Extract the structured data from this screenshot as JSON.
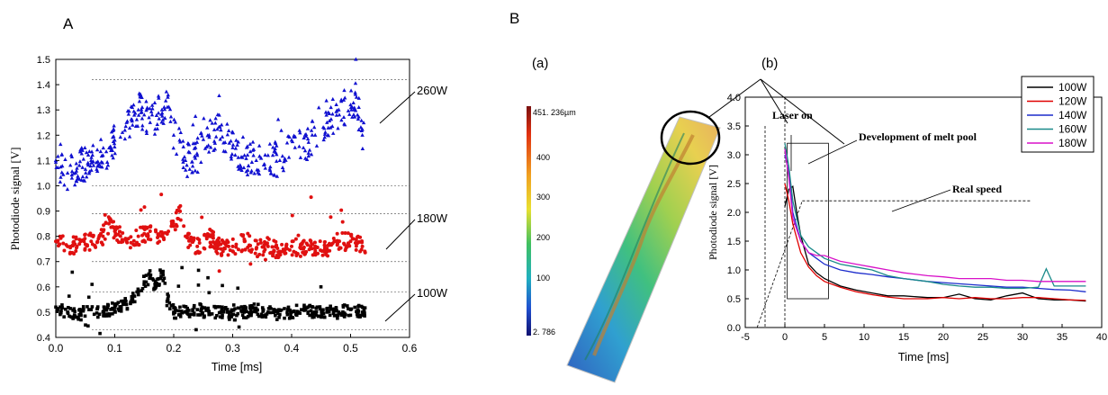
{
  "panels": {
    "A": "A",
    "B": "B",
    "a": "(a)",
    "b": "(b)"
  },
  "chart_data": [
    {
      "type": "scatter",
      "panel": "A",
      "xlabel": "Time [ms]",
      "ylabel": "Photodiode signal [V]",
      "xlim": [
        0.0,
        0.6
      ],
      "ylim": [
        0.4,
        1.5
      ],
      "xticks": [
        "0.0",
        "0.1",
        "0.2",
        "0.3",
        "0.4",
        "0.5",
        "0.6"
      ],
      "yticks": [
        "0.4",
        "0.5",
        "0.6",
        "0.7",
        "0.8",
        "0.9",
        "1.0",
        "1.1",
        "1.2",
        "1.3",
        "1.4",
        "1.5"
      ],
      "annotations": [
        "260W",
        "180W",
        "100W"
      ],
      "series": [
        {
          "name": "260W",
          "color": "#1010d0",
          "marker": "triangle",
          "x": [
            0.0,
            0.02,
            0.04,
            0.06,
            0.08,
            0.1,
            0.12,
            0.14,
            0.15,
            0.16,
            0.18,
            0.19,
            0.2,
            0.21,
            0.22,
            0.24,
            0.26,
            0.28,
            0.3,
            0.32,
            0.34,
            0.36,
            0.38,
            0.4,
            0.42,
            0.44,
            0.46,
            0.48,
            0.5,
            0.51,
            0.52
          ],
          "y": [
            1.1,
            1.05,
            1.08,
            1.1,
            1.12,
            1.18,
            1.25,
            1.3,
            1.28,
            1.25,
            1.3,
            1.35,
            1.2,
            1.18,
            1.1,
            1.12,
            1.2,
            1.22,
            1.15,
            1.12,
            1.1,
            1.12,
            1.1,
            1.18,
            1.15,
            1.2,
            1.25,
            1.3,
            1.32,
            1.35,
            1.2
          ]
        },
        {
          "name": "180W",
          "color": "#e01010",
          "marker": "circle",
          "x": [
            0.0,
            0.02,
            0.04,
            0.06,
            0.08,
            0.09,
            0.1,
            0.12,
            0.14,
            0.16,
            0.18,
            0.2,
            0.21,
            0.22,
            0.24,
            0.26,
            0.28,
            0.3,
            0.32,
            0.34,
            0.36,
            0.38,
            0.4,
            0.42,
            0.44,
            0.46,
            0.48,
            0.5,
            0.52
          ],
          "y": [
            0.78,
            0.76,
            0.77,
            0.78,
            0.8,
            0.85,
            0.82,
            0.78,
            0.8,
            0.82,
            0.8,
            0.84,
            0.9,
            0.8,
            0.76,
            0.8,
            0.75,
            0.76,
            0.78,
            0.75,
            0.76,
            0.74,
            0.76,
            0.75,
            0.76,
            0.75,
            0.78,
            0.78,
            0.76
          ]
        },
        {
          "name": "100W",
          "color": "#000000",
          "marker": "square",
          "x": [
            0.0,
            0.02,
            0.04,
            0.06,
            0.08,
            0.1,
            0.12,
            0.14,
            0.15,
            0.16,
            0.17,
            0.18,
            0.19,
            0.2,
            0.22,
            0.24,
            0.26,
            0.28,
            0.3,
            0.32,
            0.34,
            0.36,
            0.38,
            0.4,
            0.42,
            0.44,
            0.46,
            0.48,
            0.5,
            0.52
          ],
          "y": [
            0.52,
            0.5,
            0.49,
            0.51,
            0.5,
            0.52,
            0.53,
            0.58,
            0.62,
            0.64,
            0.6,
            0.66,
            0.55,
            0.5,
            0.5,
            0.51,
            0.5,
            0.5,
            0.49,
            0.5,
            0.51,
            0.5,
            0.49,
            0.5,
            0.51,
            0.5,
            0.5,
            0.5,
            0.51,
            0.5
          ]
        }
      ]
    },
    {
      "type": "line",
      "panel": "B(b)",
      "xlabel": "Time [ms]",
      "ylabel": "Photodiode signal [V]",
      "xlim": [
        -5,
        40
      ],
      "ylim": [
        0.0,
        4.0
      ],
      "xticks": [
        "-5",
        "0",
        "5",
        "10",
        "15",
        "20",
        "25",
        "30",
        "35",
        "40"
      ],
      "yticks": [
        "0.0",
        "0.5",
        "1.0",
        "1.5",
        "2.0",
        "2.5",
        "3.0",
        "3.5",
        "4.0"
      ],
      "legend_position": "top-right",
      "annotations": [
        "Laser on",
        "Development of melt pool",
        "Real speed"
      ],
      "series": [
        {
          "name": "100W",
          "color": "#000000",
          "x": [
            0,
            0.5,
            1,
            1.5,
            2,
            3,
            4,
            5,
            7,
            9,
            11,
            13,
            15,
            18,
            20,
            22,
            24,
            26,
            28,
            30,
            32,
            34,
            36,
            38
          ],
          "y": [
            2.1,
            2.4,
            2.45,
            2.0,
            1.6,
            1.1,
            0.95,
            0.85,
            0.72,
            0.65,
            0.6,
            0.55,
            0.55,
            0.52,
            0.52,
            0.58,
            0.5,
            0.48,
            0.55,
            0.6,
            0.5,
            0.48,
            0.48,
            0.46
          ]
        },
        {
          "name": "120W",
          "color": "#e00000",
          "x": [
            0,
            0.5,
            1,
            2,
            3,
            4,
            5,
            7,
            9,
            11,
            13,
            15,
            18,
            20,
            22,
            24,
            26,
            28,
            30,
            32,
            34,
            36,
            38
          ],
          "y": [
            2.5,
            2.2,
            1.8,
            1.3,
            1.05,
            0.9,
            0.8,
            0.7,
            0.62,
            0.57,
            0.53,
            0.5,
            0.5,
            0.52,
            0.5,
            0.52,
            0.5,
            0.5,
            0.52,
            0.52,
            0.5,
            0.48,
            0.47
          ]
        },
        {
          "name": "140W",
          "color": "#1c2ccc",
          "x": [
            0,
            0.5,
            1,
            2,
            3,
            4,
            5,
            7,
            9,
            11,
            13,
            15,
            18,
            20,
            22,
            24,
            26,
            28,
            30,
            32,
            34,
            36,
            38
          ],
          "y": [
            3.0,
            2.7,
            2.0,
            1.5,
            1.3,
            1.2,
            1.1,
            1.0,
            0.95,
            0.92,
            0.88,
            0.85,
            0.8,
            0.78,
            0.76,
            0.74,
            0.72,
            0.7,
            0.7,
            0.68,
            0.66,
            0.65,
            0.62
          ]
        },
        {
          "name": "160W",
          "color": "#1a8a8a",
          "x": [
            0,
            0.5,
            1,
            2,
            3,
            4,
            5,
            7,
            9,
            11,
            13,
            15,
            18,
            20,
            22,
            24,
            26,
            28,
            30,
            32,
            33,
            34,
            36,
            38
          ],
          "y": [
            3.2,
            2.8,
            2.2,
            1.6,
            1.4,
            1.3,
            1.2,
            1.1,
            1.05,
            1.0,
            0.9,
            0.85,
            0.8,
            0.75,
            0.72,
            0.7,
            0.7,
            0.68,
            0.68,
            0.7,
            1.02,
            0.72,
            0.72,
            0.72
          ]
        },
        {
          "name": "180W",
          "color": "#d810c8",
          "x": [
            0,
            0.5,
            1,
            2,
            3,
            4,
            5,
            7,
            9,
            11,
            13,
            15,
            18,
            20,
            22,
            24,
            26,
            28,
            30,
            32,
            34,
            36,
            38
          ],
          "y": [
            3.1,
            2.6,
            1.9,
            1.5,
            1.3,
            1.25,
            1.25,
            1.15,
            1.1,
            1.05,
            1.0,
            0.95,
            0.9,
            0.88,
            0.85,
            0.85,
            0.85,
            0.82,
            0.82,
            0.8,
            0.8,
            0.8,
            0.8
          ]
        }
      ]
    },
    {
      "type": "heatmap",
      "panel": "B(a)",
      "colorbar_ticks": [
        "451. 236µm",
        "400",
        "300",
        "200",
        "100",
        "2. 786"
      ],
      "colorbar_range": [
        2.786,
        451.236
      ],
      "colors": [
        "#7a1010",
        "#e03010",
        "#f0a020",
        "#e8e030",
        "#40c060",
        "#20b0c0",
        "#2050d0",
        "#101070"
      ]
    }
  ]
}
